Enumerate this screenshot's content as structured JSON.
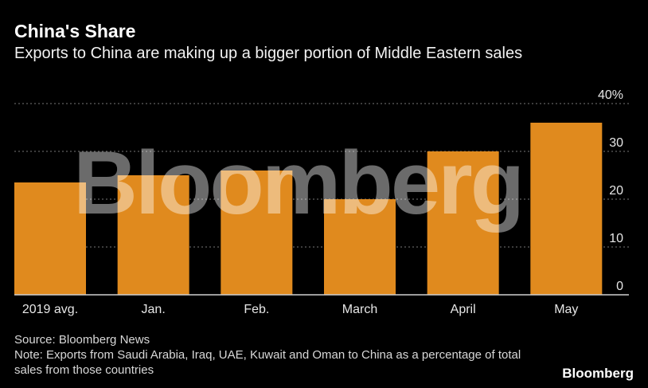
{
  "header": {
    "title": "China's Share",
    "subtitle": "Exports to China are making up a bigger portion of Middle Eastern sales"
  },
  "footer": {
    "source": "Source: Bloomberg News",
    "note": "Note: Exports from Saudi Arabia, Iraq, UAE, Kuwait and Oman to China as a percentage of total sales from those countries",
    "brand": "Bloomberg"
  },
  "watermark": "Bloomberg",
  "colors": {
    "bar": "#e08a1e",
    "background": "#000000",
    "grid": "#777777"
  },
  "chart_data": {
    "type": "bar",
    "title": "China's Share",
    "categories": [
      "2019 avg.",
      "Jan.",
      "Feb.",
      "March",
      "April",
      "May"
    ],
    "values": [
      23.5,
      25,
      26,
      20,
      30,
      36
    ],
    "ylim": [
      0,
      40
    ],
    "yticks": [
      0,
      10,
      20,
      30,
      40
    ],
    "ytick_labels": [
      "0",
      "10",
      "20",
      "30",
      "40%"
    ],
    "y_axis_position": "right",
    "grid": true
  }
}
